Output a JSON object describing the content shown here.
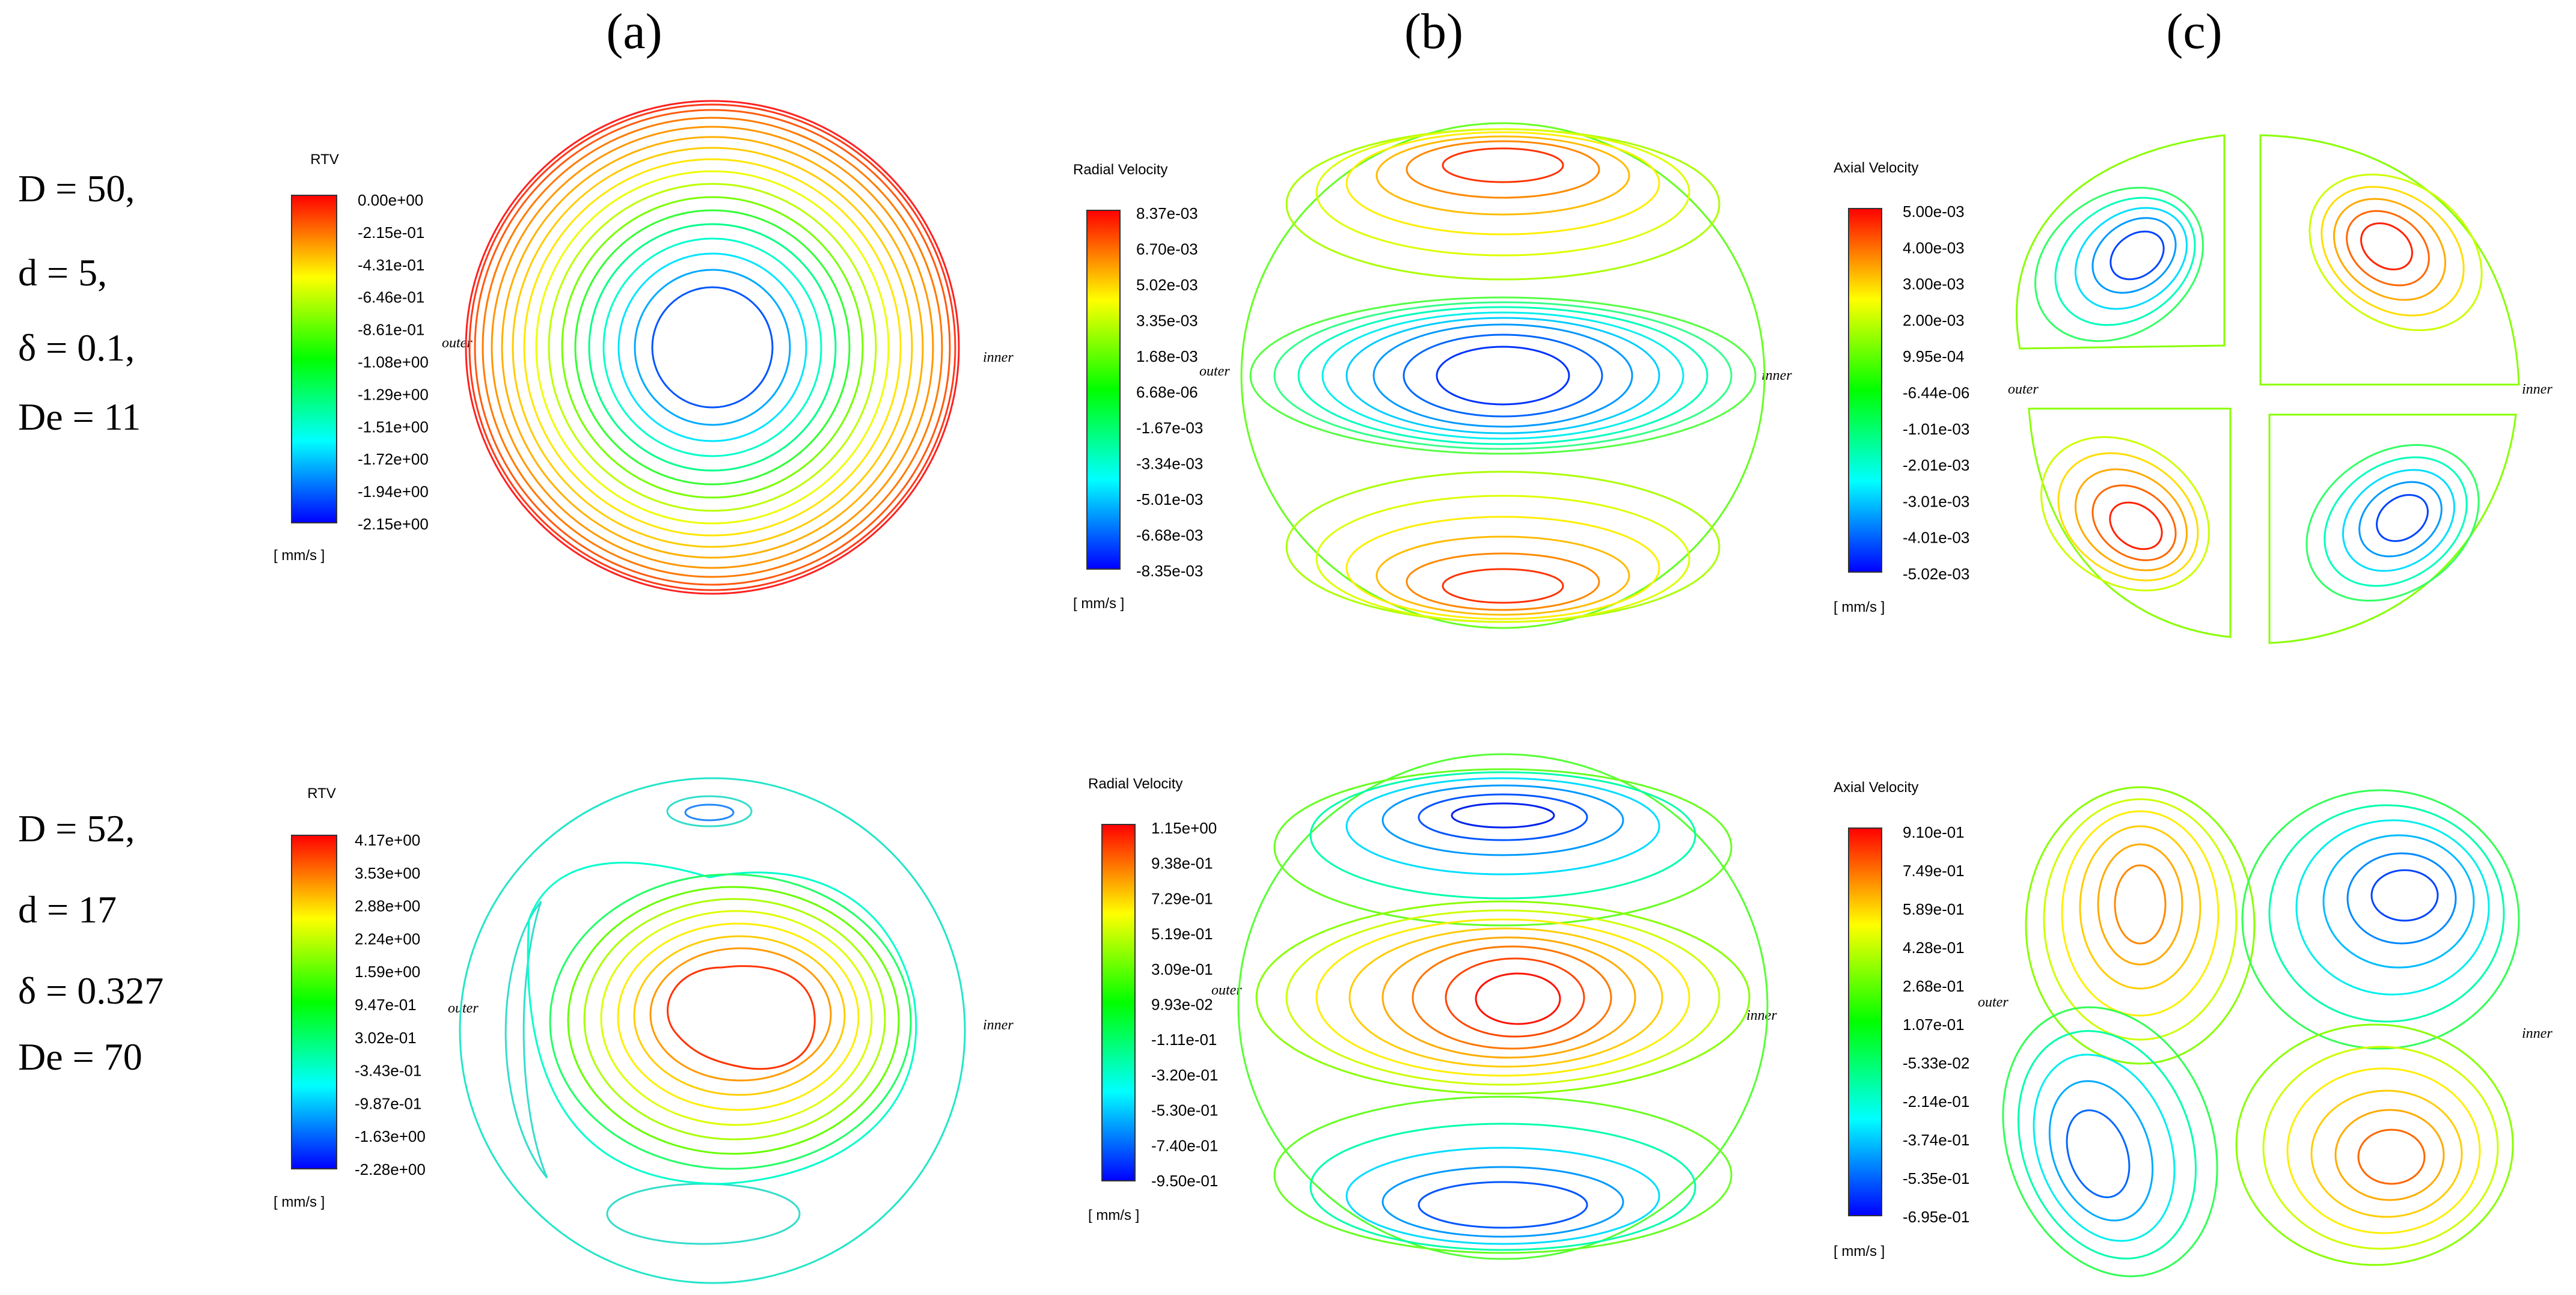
{
  "column_labels": [
    "(a)",
    "(b)",
    "(c)"
  ],
  "rows": [
    {
      "params": [
        "D = 50,",
        "d = 5,",
        "δ = 0.1,",
        "De = 11"
      ],
      "panels": [
        {
          "title": "RTV",
          "ticks": [
            "0.00e+00",
            "-2.15e-01",
            "-4.31e-01",
            "-6.46e-01",
            "-8.61e-01",
            "-1.08e+00",
            "-1.29e+00",
            "-1.51e+00",
            "-1.72e+00",
            "-1.94e+00",
            "-2.15e+00"
          ],
          "unit": "[ mm/s ]",
          "outer": "outer",
          "inner": "inner"
        },
        {
          "title": "Radial Velocity",
          "ticks": [
            "8.37e-03",
            "6.70e-03",
            "5.02e-03",
            "3.35e-03",
            "1.68e-03",
            "6.68e-06",
            "-1.67e-03",
            "-3.34e-03",
            "-5.01e-03",
            "-6.68e-03",
            "-8.35e-03"
          ],
          "unit": "[ mm/s ]",
          "outer": "outer",
          "inner": "inner"
        },
        {
          "title": "Axial Velocity",
          "ticks": [
            "5.00e-03",
            "4.00e-03",
            "3.00e-03",
            "2.00e-03",
            "9.95e-04",
            "-6.44e-06",
            "-1.01e-03",
            "-2.01e-03",
            "-3.01e-03",
            "-4.01e-03",
            "-5.02e-03"
          ],
          "unit": "[ mm/s ]",
          "outer": "outer",
          "inner": "inner"
        }
      ]
    },
    {
      "params": [
        "D = 52,",
        "d = 17",
        "δ = 0.327",
        "De = 70"
      ],
      "panels": [
        {
          "title": "RTV",
          "ticks": [
            "4.17e+00",
            "3.53e+00",
            "2.88e+00",
            "2.24e+00",
            "1.59e+00",
            "9.47e-01",
            "3.02e-01",
            "-3.43e-01",
            "-9.87e-01",
            "-1.63e+00",
            "-2.28e+00"
          ],
          "unit": "[ mm/s ]",
          "outer": "outer",
          "inner": "inner"
        },
        {
          "title": "Radial Velocity",
          "ticks": [
            "1.15e+00",
            "9.38e-01",
            "7.29e-01",
            "5.19e-01",
            "3.09e-01",
            "9.93e-02",
            "-1.11e-01",
            "-3.20e-01",
            "-5.30e-01",
            "-7.40e-01",
            "-9.50e-01"
          ],
          "unit": "[ mm/s ]",
          "outer": "outer",
          "inner": "inner"
        },
        {
          "title": "Axial Velocity",
          "ticks": [
            "9.10e-01",
            "7.49e-01",
            "5.89e-01",
            "4.28e-01",
            "2.68e-01",
            "1.07e-01",
            "-5.33e-02",
            "-2.14e-01",
            "-3.74e-01",
            "-5.35e-01",
            "-6.95e-01"
          ],
          "unit": "[ mm/s ]",
          "outer": "outer",
          "inner": "inner"
        }
      ]
    }
  ],
  "colormap": [
    "#0000ff",
    "#0066ff",
    "#00ccff",
    "#00ffcc",
    "#00ff66",
    "#33ff00",
    "#99ff00",
    "#ffff00",
    "#ffcc00",
    "#ff8800",
    "#ff0000"
  ]
}
